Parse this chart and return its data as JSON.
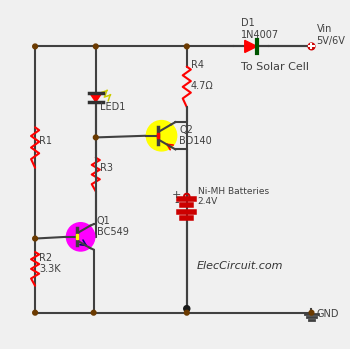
{
  "bg_color": "#f0f0f0",
  "line_color": "#404040",
  "resistor_color": "#ff0000",
  "node_color": "#6b3a00",
  "label_vin": "Vin\n5V/6V",
  "label_solar": "To Solar Cell",
  "label_d1": "D1\n1N4007",
  "label_r4": "R4",
  "label_r4_val": "4.7Ω",
  "label_r1": "R1",
  "label_r2": "R2\n3.3K",
  "label_r3": "R3",
  "label_q1": "Q1\nBC549",
  "label_q2": "Q2\nBD140",
  "label_led": "LED1",
  "label_bat": "Ni-MH Batteries\n2.4V",
  "label_gnd": "GND",
  "label_elec": "ElecCircuit.com"
}
